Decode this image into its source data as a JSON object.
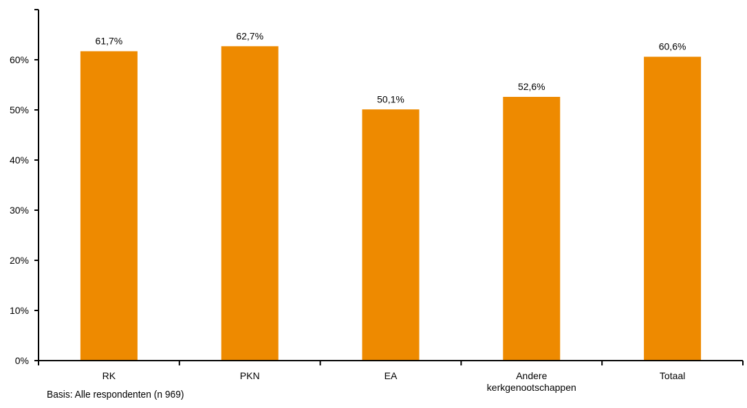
{
  "footnote": "Basis: Alle respondenten (n 969)",
  "chart_data": {
    "type": "bar",
    "categories": [
      "RK",
      "PKN",
      "EA",
      "Andere kerkgenootschappen",
      "Totaal"
    ],
    "category_lines": [
      [
        "RK"
      ],
      [
        "PKN"
      ],
      [
        "EA"
      ],
      [
        "Andere",
        "kerkgenootschappen"
      ],
      [
        "Totaal"
      ]
    ],
    "values": [
      61.7,
      62.7,
      50.1,
      52.6,
      60.6
    ],
    "data_labels": [
      "61,7%",
      "62,7%",
      "50,1%",
      "52,6%",
      "60,6%"
    ],
    "y_ticks": [
      0,
      10,
      20,
      30,
      40,
      50,
      60
    ],
    "y_tick_labels": [
      "0%",
      "10%",
      "20%",
      "30%",
      "40%",
      "50%",
      "60%"
    ],
    "ylim": [
      0,
      70
    ],
    "bar_color": "#EE8A00",
    "grid": false,
    "legend": "none",
    "title": "",
    "xlabel": "",
    "ylabel": ""
  }
}
